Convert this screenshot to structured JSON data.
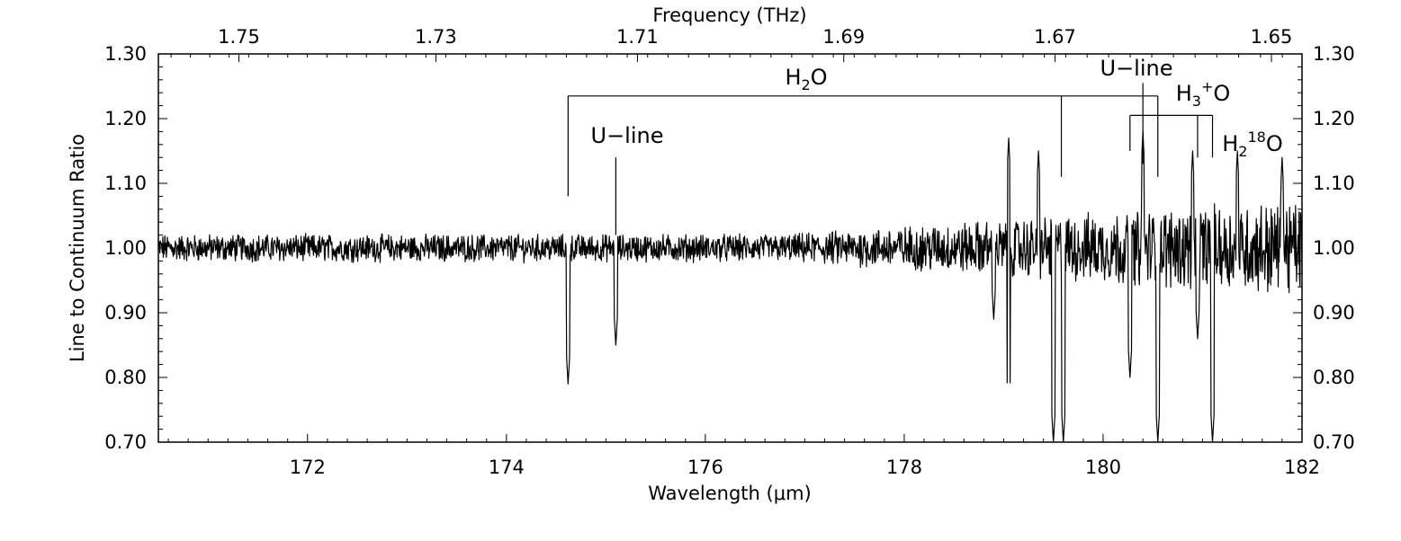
{
  "chart_data": {
    "type": "line",
    "title": "",
    "xlabel": "Wavelength (μm)",
    "x2label": "Frequency (THz)",
    "ylabel": "Line to Continuum Ratio",
    "xlim": [
      170.5,
      182
    ],
    "ylim": [
      0.7,
      1.3
    ],
    "x_ticks": [
      172,
      174,
      176,
      178,
      180,
      182
    ],
    "x_tick_labels": [
      "172",
      "174",
      "176",
      "178",
      "180",
      "182"
    ],
    "y_ticks": [
      0.7,
      0.8,
      0.9,
      1.0,
      1.1,
      1.2,
      1.3
    ],
    "y_tick_labels": [
      "0.70",
      "0.80",
      "0.90",
      "1.00",
      "1.10",
      "1.20",
      "1.30"
    ],
    "top_ticks": [
      1.75,
      1.73,
      1.71,
      1.69,
      1.67,
      1.65
    ],
    "top_tick_labels": [
      "1.75",
      "1.73",
      "1.71",
      "1.69",
      "1.67",
      "1.65"
    ],
    "grid": false,
    "series": [
      {
        "baseline": 1.0,
        "absorption_features": [
          {
            "x": 174.62,
            "y": 0.79
          },
          {
            "x": 175.1,
            "y": 0.85
          },
          {
            "x": 178.9,
            "y": 0.89
          },
          {
            "x": 179.05,
            "y": 0.75
          },
          {
            "x": 179.5,
            "y": 0.7
          },
          {
            "x": 179.6,
            "y": 0.7
          },
          {
            "x": 180.27,
            "y": 0.8
          },
          {
            "x": 180.55,
            "y": 0.7
          },
          {
            "x": 180.95,
            "y": 0.86
          },
          {
            "x": 181.1,
            "y": 0.7
          }
        ],
        "peak_features": [
          {
            "x": 179.05,
            "y": 1.17
          },
          {
            "x": 179.35,
            "y": 1.15
          },
          {
            "x": 180.4,
            "y": 1.18
          },
          {
            "x": 180.9,
            "y": 1.15
          },
          {
            "x": 181.35,
            "y": 1.15
          },
          {
            "x": 181.8,
            "y": 1.14
          }
        ]
      }
    ],
    "annotations": {
      "h2o": {
        "label": "H",
        "sub": "2",
        "tail": "O",
        "x_left": 174.62,
        "x_right": 180.55,
        "x_mid": 179.58,
        "y_bar": 1.235
      },
      "u_line_1": {
        "label": "U−line",
        "x": 175.1
      },
      "u_line_2": {
        "label": "U−line",
        "x": 180.4
      },
      "h3o": {
        "label": "H",
        "sub": "3",
        "tail": "O",
        "sup": "+",
        "x_left": 180.27,
        "x_right": 181.1,
        "x_mid": 180.95,
        "y_bar": 1.205
      },
      "h2_18o": {
        "label": "H",
        "sub": "2",
        "sup": "18",
        "tail": "O",
        "x": 181.1
      }
    }
  }
}
